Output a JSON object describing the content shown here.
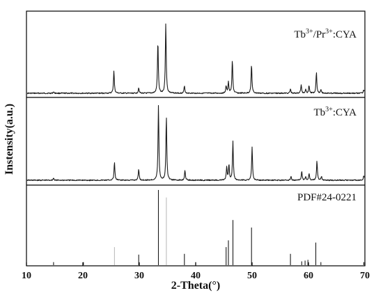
{
  "chart_data": {
    "type": "line",
    "title": "",
    "xlabel": "2-Theta(°)",
    "ylabel": "Instensity(a.u.)",
    "xlim": [
      10,
      70
    ],
    "xticks": [
      "10",
      "20",
      "30",
      "40",
      "50",
      "60",
      "70"
    ],
    "grid": false,
    "legend": "none",
    "panels": [
      {
        "label_parts": [
          "Tb",
          "3+",
          "/Pr",
          "3+",
          ":CYA"
        ],
        "kind": "pattern",
        "peaks": [
          {
            "x": 14.8,
            "h": 0.02
          },
          {
            "x": 25.5,
            "h": 0.32
          },
          {
            "x": 29.9,
            "h": 0.08
          },
          {
            "x": 33.3,
            "h": 0.74
          },
          {
            "x": 34.7,
            "h": 1.0
          },
          {
            "x": 38.0,
            "h": 0.1
          },
          {
            "x": 45.4,
            "h": 0.1
          },
          {
            "x": 45.8,
            "h": 0.16
          },
          {
            "x": 46.5,
            "h": 0.47
          },
          {
            "x": 49.9,
            "h": 0.41
          },
          {
            "x": 56.8,
            "h": 0.06
          },
          {
            "x": 58.7,
            "h": 0.12
          },
          {
            "x": 59.5,
            "h": 0.06
          },
          {
            "x": 60.1,
            "h": 0.11
          },
          {
            "x": 61.4,
            "h": 0.3
          },
          {
            "x": 62.2,
            "h": 0.06
          },
          {
            "x": 69.8,
            "h": 0.05
          }
        ]
      },
      {
        "label_parts": [
          "Tb",
          "3+",
          ":CYA"
        ],
        "kind": "pattern",
        "peaks": [
          {
            "x": 14.8,
            "h": 0.03
          },
          {
            "x": 25.6,
            "h": 0.24
          },
          {
            "x": 29.9,
            "h": 0.15
          },
          {
            "x": 33.4,
            "h": 1.0
          },
          {
            "x": 34.8,
            "h": 0.86
          },
          {
            "x": 38.1,
            "h": 0.14
          },
          {
            "x": 45.5,
            "h": 0.18
          },
          {
            "x": 45.9,
            "h": 0.2
          },
          {
            "x": 46.6,
            "h": 0.52
          },
          {
            "x": 50.0,
            "h": 0.44
          },
          {
            "x": 56.9,
            "h": 0.05
          },
          {
            "x": 58.8,
            "h": 0.12
          },
          {
            "x": 59.5,
            "h": 0.05
          },
          {
            "x": 60.1,
            "h": 0.09
          },
          {
            "x": 61.5,
            "h": 0.26
          },
          {
            "x": 62.3,
            "h": 0.05
          },
          {
            "x": 69.8,
            "h": 0.06
          }
        ]
      },
      {
        "label_parts": [
          "PDF#24-0221"
        ],
        "kind": "reference",
        "peaks": [
          {
            "x": 14.8,
            "h": 0.04
          },
          {
            "x": 20.1,
            "h": 0.04
          },
          {
            "x": 25.6,
            "h": 0.24,
            "color": "#bdbdbd"
          },
          {
            "x": 29.9,
            "h": 0.14
          },
          {
            "x": 33.4,
            "h": 1.0
          },
          {
            "x": 34.8,
            "h": 0.9,
            "color": "#bdbdbd"
          },
          {
            "x": 38.0,
            "h": 0.15
          },
          {
            "x": 40.0,
            "h": 0.04
          },
          {
            "x": 45.4,
            "h": 0.24
          },
          {
            "x": 45.8,
            "h": 0.33
          },
          {
            "x": 46.6,
            "h": 0.6
          },
          {
            "x": 49.9,
            "h": 0.5
          },
          {
            "x": 56.8,
            "h": 0.15
          },
          {
            "x": 58.8,
            "h": 0.05
          },
          {
            "x": 59.4,
            "h": 0.06
          },
          {
            "x": 59.9,
            "h": 0.07
          },
          {
            "x": 61.3,
            "h": 0.3
          },
          {
            "x": 62.2,
            "h": 0.04
          },
          {
            "x": 69.8,
            "h": 0.04
          }
        ]
      }
    ]
  }
}
